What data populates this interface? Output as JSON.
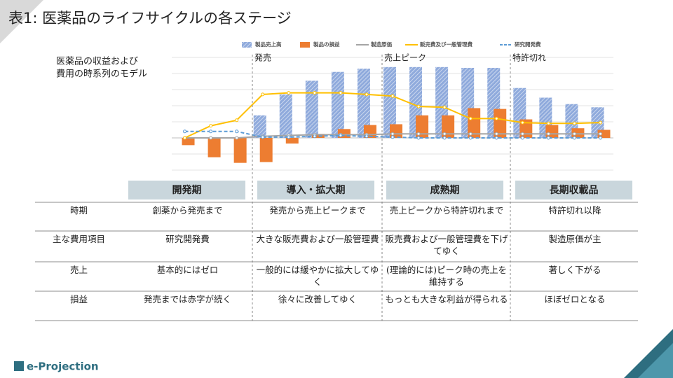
{
  "title": "表1: 医薬品のライフサイクルの各ステージ",
  "chart_data": {
    "type": "bar",
    "note": [
      "医薬品の収益および",
      "費用の時系列のモデル"
    ],
    "annotations": [
      "発売",
      "売上ピーク",
      "特許切れ"
    ],
    "categories": [
      null,
      null,
      null,
      null,
      null,
      null,
      null,
      null,
      null,
      null,
      null,
      null,
      null,
      null,
      null,
      null,
      null
    ],
    "series": [
      {
        "name": "製品売上高",
        "type": "bar",
        "color": "#8faadc",
        "values": [
          0,
          0,
          0,
          28,
          54,
          71,
          82,
          86,
          88,
          88,
          88,
          87,
          87,
          62,
          50,
          42,
          38
        ]
      },
      {
        "name": "製品の損益",
        "type": "bar",
        "color": "#ed7d31",
        "values": [
          -9,
          -24,
          -31,
          -30,
          -7,
          5,
          11,
          16,
          17,
          28,
          28,
          37,
          36,
          23,
          16,
          12,
          10
        ]
      },
      {
        "name": "製造原価",
        "type": "line",
        "color": "#a5a5a5",
        "values": [
          0,
          0,
          0,
          2,
          3,
          4,
          4,
          4,
          5,
          5,
          5,
          5,
          5,
          5,
          5,
          5,
          5
        ]
      },
      {
        "name": "販売費及び一般管理費",
        "type": "line",
        "color": "#ffc000",
        "values": [
          0,
          15,
          22,
          54,
          56,
          56,
          56,
          54,
          52,
          39,
          38,
          24,
          24,
          19,
          18,
          18,
          19
        ]
      },
      {
        "name": "研究開発費",
        "type": "line",
        "dashed": true,
        "color": "#5b9bd5",
        "values": [
          8,
          8,
          8,
          1,
          1,
          2,
          3,
          2,
          1,
          0,
          0,
          0,
          0,
          0,
          0,
          0,
          0
        ]
      }
    ],
    "ylim": [
      -40,
      100
    ],
    "yticks": [
      -40,
      -20,
      0,
      20,
      40,
      60,
      80,
      100
    ],
    "grid": true
  },
  "table": {
    "stages": [
      "開発期",
      "導入・拡大期",
      "成熟期",
      "長期収載品"
    ],
    "rows": [
      [
        "時期",
        "創薬から発売まで",
        "発売から売上ピークまで",
        "売上ピークから特許切れまで",
        "特許切れ以降"
      ],
      [
        "主な費用項目",
        "研究開発費",
        "大きな販売費および一般管理費",
        "販売費および一般管理費を下げてゆく",
        "製造原価が主"
      ],
      [
        "売上",
        "基本的にはゼロ",
        "一般的には緩やかに拡大してゆく",
        "(理論的には)ピーク時の売上を維持する",
        "著しく下がる"
      ],
      [
        "損益",
        "発売までは赤字が続く",
        "徐々に改善してゆく",
        "もっとも大きな利益が得られる",
        "ほぼゼロとなる"
      ]
    ]
  },
  "footer": "e-Projection"
}
